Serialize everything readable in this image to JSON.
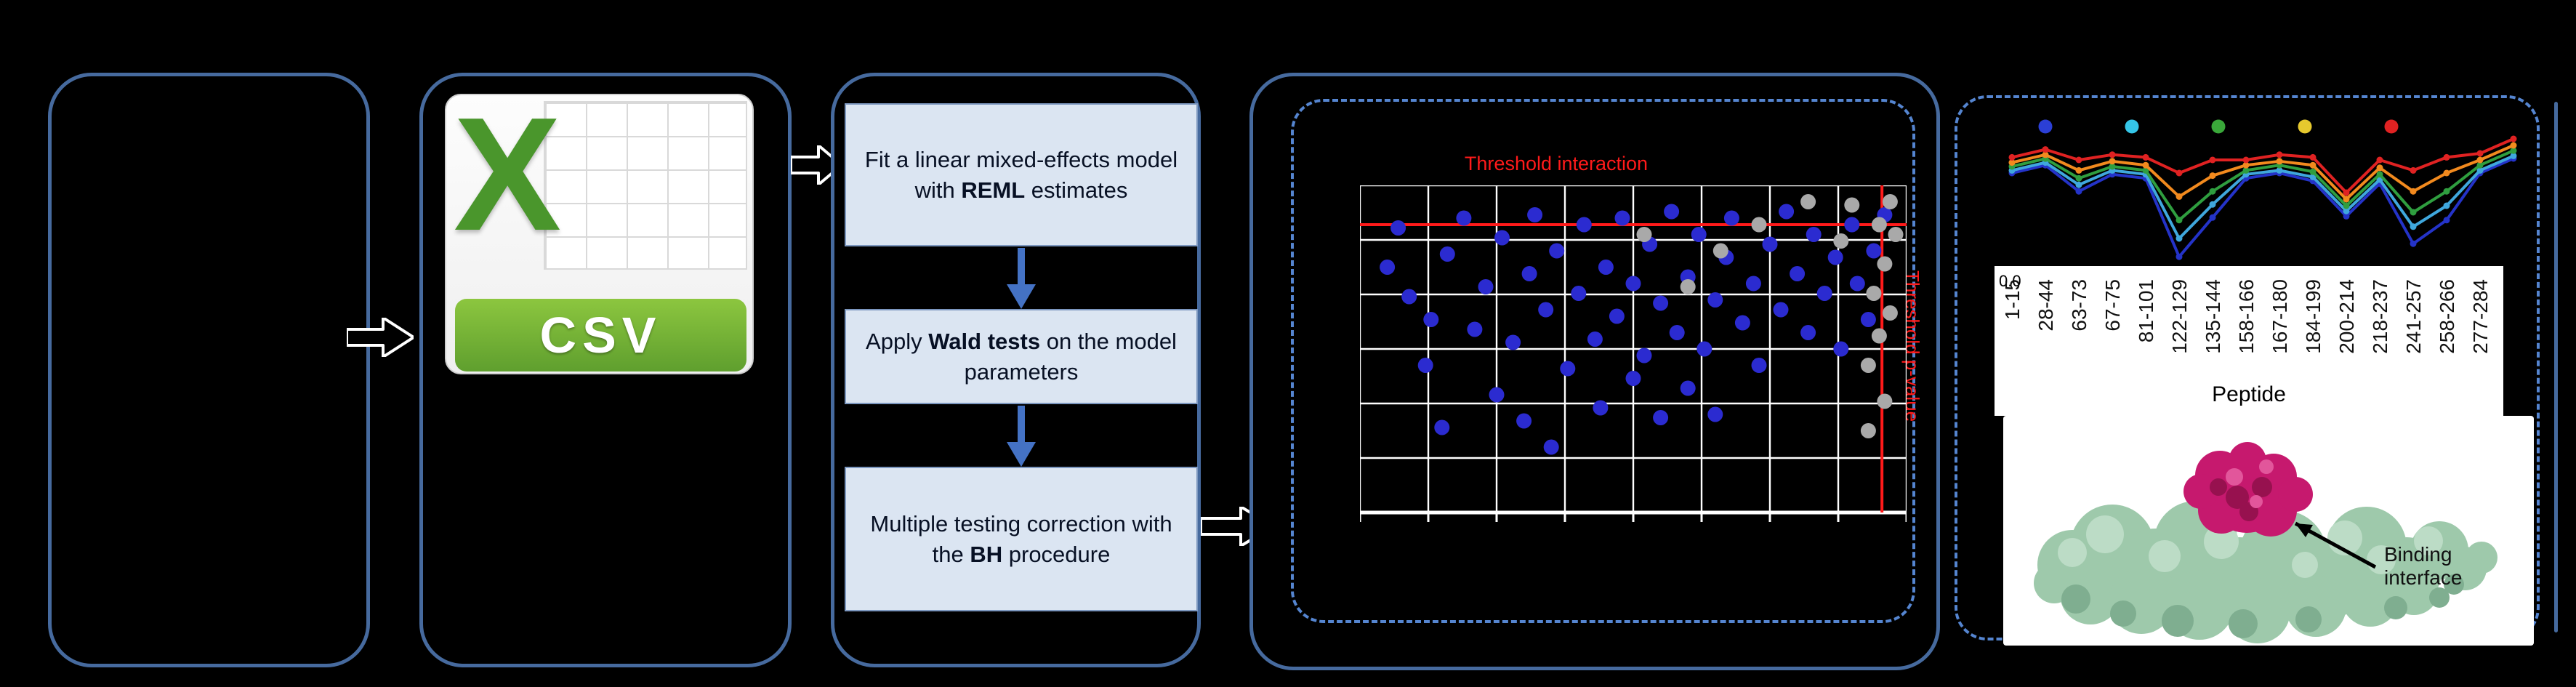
{
  "colors": {
    "background": "#000000",
    "panel_border": "#466a9e",
    "dashed_border": "#5585d0",
    "flow_box_fill": "#dbe5f2",
    "flow_box_border": "#7c97bf",
    "flow_arrow_blue": "#4472c4",
    "threshold_red": "#ff1a1a",
    "csv_banner_green": "#6fae37",
    "csv_x_green": "#4a962c",
    "protein_surface_green": "#9ec9ab",
    "binding_site_magenta": "#c6196e"
  },
  "flowchart": {
    "box1": {
      "pre": "Fit a linear mixed-effects model with ",
      "bold": "REML",
      "post": " estimates"
    },
    "box2": {
      "pre": "Apply ",
      "bold": "Wald tests",
      "post": " on the model parameters"
    },
    "box3": {
      "pre": "Multiple testing correction with the ",
      "bold": "BH",
      "post": " procedure"
    }
  },
  "csv_icon": {
    "x_letter": "X",
    "banner_label": "CSV"
  },
  "epitope": {
    "annotation_line1": "Binding",
    "annotation_line2": "interface"
  },
  "chart_data": [
    {
      "type": "scatter",
      "title": "",
      "xlabel": "",
      "ylabel": "",
      "note": "No axis tick labels are legible; point coordinates are normalized to the plot area (x: 0=left..1=right, y: 0=top..1=bottom).",
      "grid": {
        "v_lines": 9,
        "h_lines": 7,
        "color": "#ffffff"
      },
      "threshold_lines": {
        "horizontal_y_frac": 0.12,
        "vertical_x_frac": 0.955,
        "color": "#ff1a1a"
      },
      "annotations": [
        {
          "text": "Threshold interaction",
          "color": "#ff1a1a",
          "position": "top"
        },
        {
          "text": "Threshold p-value",
          "color": "#ff1a1a",
          "position": "right",
          "rotated": true
        }
      ],
      "series": [
        {
          "name": "significant-points",
          "color": "#2b2bd0",
          "points": [
            [
              0.05,
              0.25
            ],
            [
              0.07,
              0.13
            ],
            [
              0.09,
              0.34
            ],
            [
              0.12,
              0.55
            ],
            [
              0.13,
              0.41
            ],
            [
              0.15,
              0.74
            ],
            [
              0.16,
              0.21
            ],
            [
              0.19,
              0.1
            ],
            [
              0.21,
              0.44
            ],
            [
              0.23,
              0.31
            ],
            [
              0.25,
              0.64
            ],
            [
              0.26,
              0.16
            ],
            [
              0.28,
              0.48
            ],
            [
              0.3,
              0.72
            ],
            [
              0.31,
              0.27
            ],
            [
              0.32,
              0.09
            ],
            [
              0.34,
              0.38
            ],
            [
              0.35,
              0.8
            ],
            [
              0.36,
              0.2
            ],
            [
              0.38,
              0.56
            ],
            [
              0.4,
              0.33
            ],
            [
              0.41,
              0.12
            ],
            [
              0.43,
              0.47
            ],
            [
              0.44,
              0.68
            ],
            [
              0.45,
              0.25
            ],
            [
              0.47,
              0.4
            ],
            [
              0.48,
              0.1
            ],
            [
              0.5,
              0.59
            ],
            [
              0.5,
              0.3
            ],
            [
              0.52,
              0.52
            ],
            [
              0.53,
              0.18
            ],
            [
              0.55,
              0.71
            ],
            [
              0.55,
              0.36
            ],
            [
              0.57,
              0.08
            ],
            [
              0.58,
              0.45
            ],
            [
              0.6,
              0.62
            ],
            [
              0.6,
              0.28
            ],
            [
              0.62,
              0.15
            ],
            [
              0.63,
              0.5
            ],
            [
              0.65,
              0.35
            ],
            [
              0.65,
              0.7
            ],
            [
              0.67,
              0.22
            ],
            [
              0.68,
              0.1
            ],
            [
              0.7,
              0.42
            ],
            [
              0.72,
              0.3
            ],
            [
              0.73,
              0.55
            ],
            [
              0.75,
              0.18
            ],
            [
              0.77,
              0.38
            ],
            [
              0.78,
              0.08
            ],
            [
              0.8,
              0.27
            ],
            [
              0.82,
              0.45
            ],
            [
              0.83,
              0.15
            ],
            [
              0.85,
              0.33
            ],
            [
              0.87,
              0.22
            ],
            [
              0.88,
              0.5
            ],
            [
              0.9,
              0.12
            ],
            [
              0.91,
              0.3
            ],
            [
              0.93,
              0.41
            ],
            [
              0.94,
              0.2
            ],
            [
              0.96,
              0.09
            ]
          ]
        },
        {
          "name": "nonsignificant-points",
          "color": "#a9a9a9",
          "points": [
            [
              0.52,
              0.15
            ],
            [
              0.6,
              0.31
            ],
            [
              0.66,
              0.2
            ],
            [
              0.73,
              0.12
            ],
            [
              0.82,
              0.05
            ],
            [
              0.88,
              0.17
            ],
            [
              0.9,
              0.06
            ],
            [
              0.93,
              0.55
            ],
            [
              0.94,
              0.33
            ],
            [
              0.95,
              0.12
            ],
            [
              0.95,
              0.46
            ],
            [
              0.96,
              0.24
            ],
            [
              0.96,
              0.66
            ],
            [
              0.97,
              0.05
            ],
            [
              0.97,
              0.39
            ],
            [
              0.98,
              0.15
            ],
            [
              0.93,
              0.75
            ]
          ]
        }
      ]
    },
    {
      "type": "line",
      "title": "",
      "xlabel": "Peptide",
      "visible_y_tick": "0.0",
      "categories": [
        "1-15",
        "28-44",
        "63-73",
        "67-75",
        "81-101",
        "122-129",
        "135-144",
        "158-166",
        "167-180",
        "184-199",
        "200-214",
        "218-237",
        "241-257",
        "258-266",
        "277-284"
      ],
      "legend_dot_colors": [
        "#2b3fd6",
        "#35c6e8",
        "#3aa83a",
        "#e6c92e",
        "#e02222"
      ],
      "series": [
        {
          "name": "state-red",
          "color": "#e02222",
          "values": [
            0.82,
            0.88,
            0.8,
            0.84,
            0.82,
            0.7,
            0.8,
            0.8,
            0.84,
            0.82,
            0.55,
            0.8,
            0.72,
            0.82,
            0.85
          ]
        },
        {
          "name": "state-orange",
          "color": "#f28a1e",
          "values": [
            0.78,
            0.84,
            0.72,
            0.79,
            0.76,
            0.52,
            0.68,
            0.76,
            0.79,
            0.76,
            0.5,
            0.74,
            0.56,
            0.7,
            0.8
          ]
        },
        {
          "name": "state-green",
          "color": "#2f9e3f",
          "values": [
            0.75,
            0.81,
            0.66,
            0.75,
            0.72,
            0.34,
            0.56,
            0.72,
            0.76,
            0.71,
            0.45,
            0.69,
            0.4,
            0.56,
            0.76
          ]
        },
        {
          "name": "state-cyan",
          "color": "#3fa7dd",
          "values": [
            0.72,
            0.78,
            0.61,
            0.72,
            0.69,
            0.2,
            0.46,
            0.69,
            0.72,
            0.67,
            0.41,
            0.65,
            0.29,
            0.45,
            0.72
          ]
        },
        {
          "name": "state-blue",
          "color": "#2433c8",
          "values": [
            0.7,
            0.76,
            0.56,
            0.69,
            0.66,
            0.06,
            0.36,
            0.66,
            0.7,
            0.64,
            0.37,
            0.62,
            0.16,
            0.34,
            0.7
          ]
        }
      ],
      "note": "Series values normalized 0-1 (1 = top of plot); only the 0.0 y tick label is visible."
    }
  ]
}
